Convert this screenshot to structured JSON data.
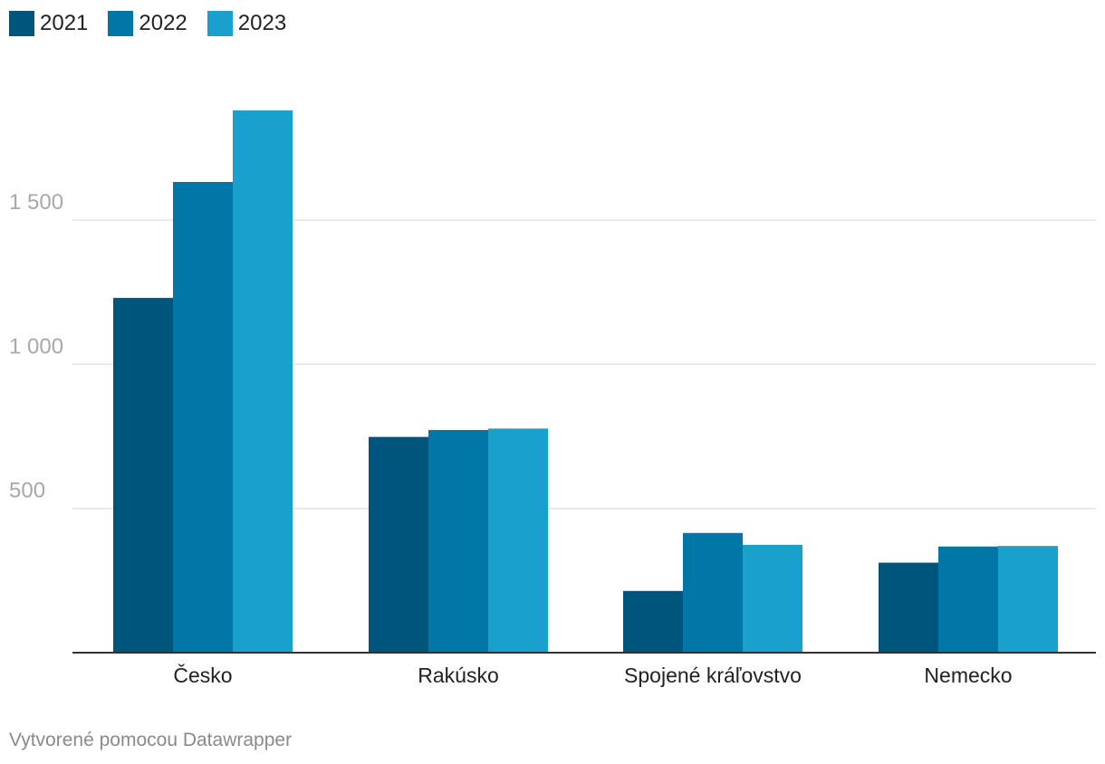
{
  "chart_data": {
    "type": "bar",
    "categories": [
      "Česko",
      "Rakúsko",
      "Spojené kráľovstvo",
      "Nemecko"
    ],
    "series": [
      {
        "name": "2021",
        "color": "#00557d",
        "values": [
          1230,
          748,
          214,
          312
        ]
      },
      {
        "name": "2022",
        "color": "#0077a6",
        "values": [
          1632,
          772,
          415,
          368
        ]
      },
      {
        "name": "2023",
        "color": "#19a0cd",
        "values": [
          1880,
          777,
          374,
          370
        ]
      }
    ],
    "ylim": [
      0,
      1880
    ],
    "yticks": [
      {
        "value": 500,
        "label": "500"
      },
      {
        "value": 1000,
        "label": "1 000"
      },
      {
        "value": 1500,
        "label": "1 500"
      }
    ],
    "grid": true,
    "legend": "top-left",
    "title": "",
    "xlabel": "",
    "ylabel": ""
  },
  "footer": {
    "credit": "Vytvorené pomocou Datawrapper"
  }
}
